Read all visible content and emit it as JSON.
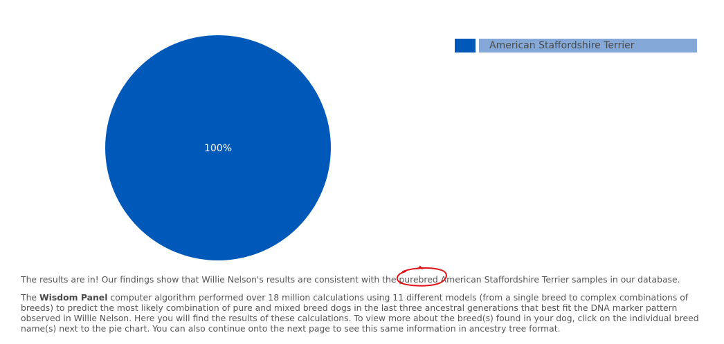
{
  "chart_data": {
    "type": "pie",
    "slices": [
      {
        "label": "American Staffordshire Terrier",
        "value": 100,
        "display": "100%"
      }
    ],
    "legend_position": "top-right"
  },
  "colors": {
    "slice": "#0059b8",
    "legend_label_bg": "#84a9d9",
    "annotation": "#e0141b"
  },
  "summary": {
    "before": "The results are in! Our findings show that Willie Nelson's results are consistent with the ",
    "highlight": "purebred",
    "after": " American Staffordshire Terrier samples in our database."
  },
  "detail": {
    "lead": "The ",
    "brand": "Wisdom Panel",
    "body": " computer algorithm performed over 18 million calculations using 11 different models (from a single breed to complex combinations of breeds) to predict the most likely combination of pure and mixed breed dogs in the last three ancestral generations that best fit the DNA marker pattern observed in Willie Nelson. Here you will find the results of these calculations. To view more about the breed(s) found in your dog, click on the individual breed name(s) next to the pie chart. You can also continue onto the next page to see this same information in ancestry tree format."
  }
}
